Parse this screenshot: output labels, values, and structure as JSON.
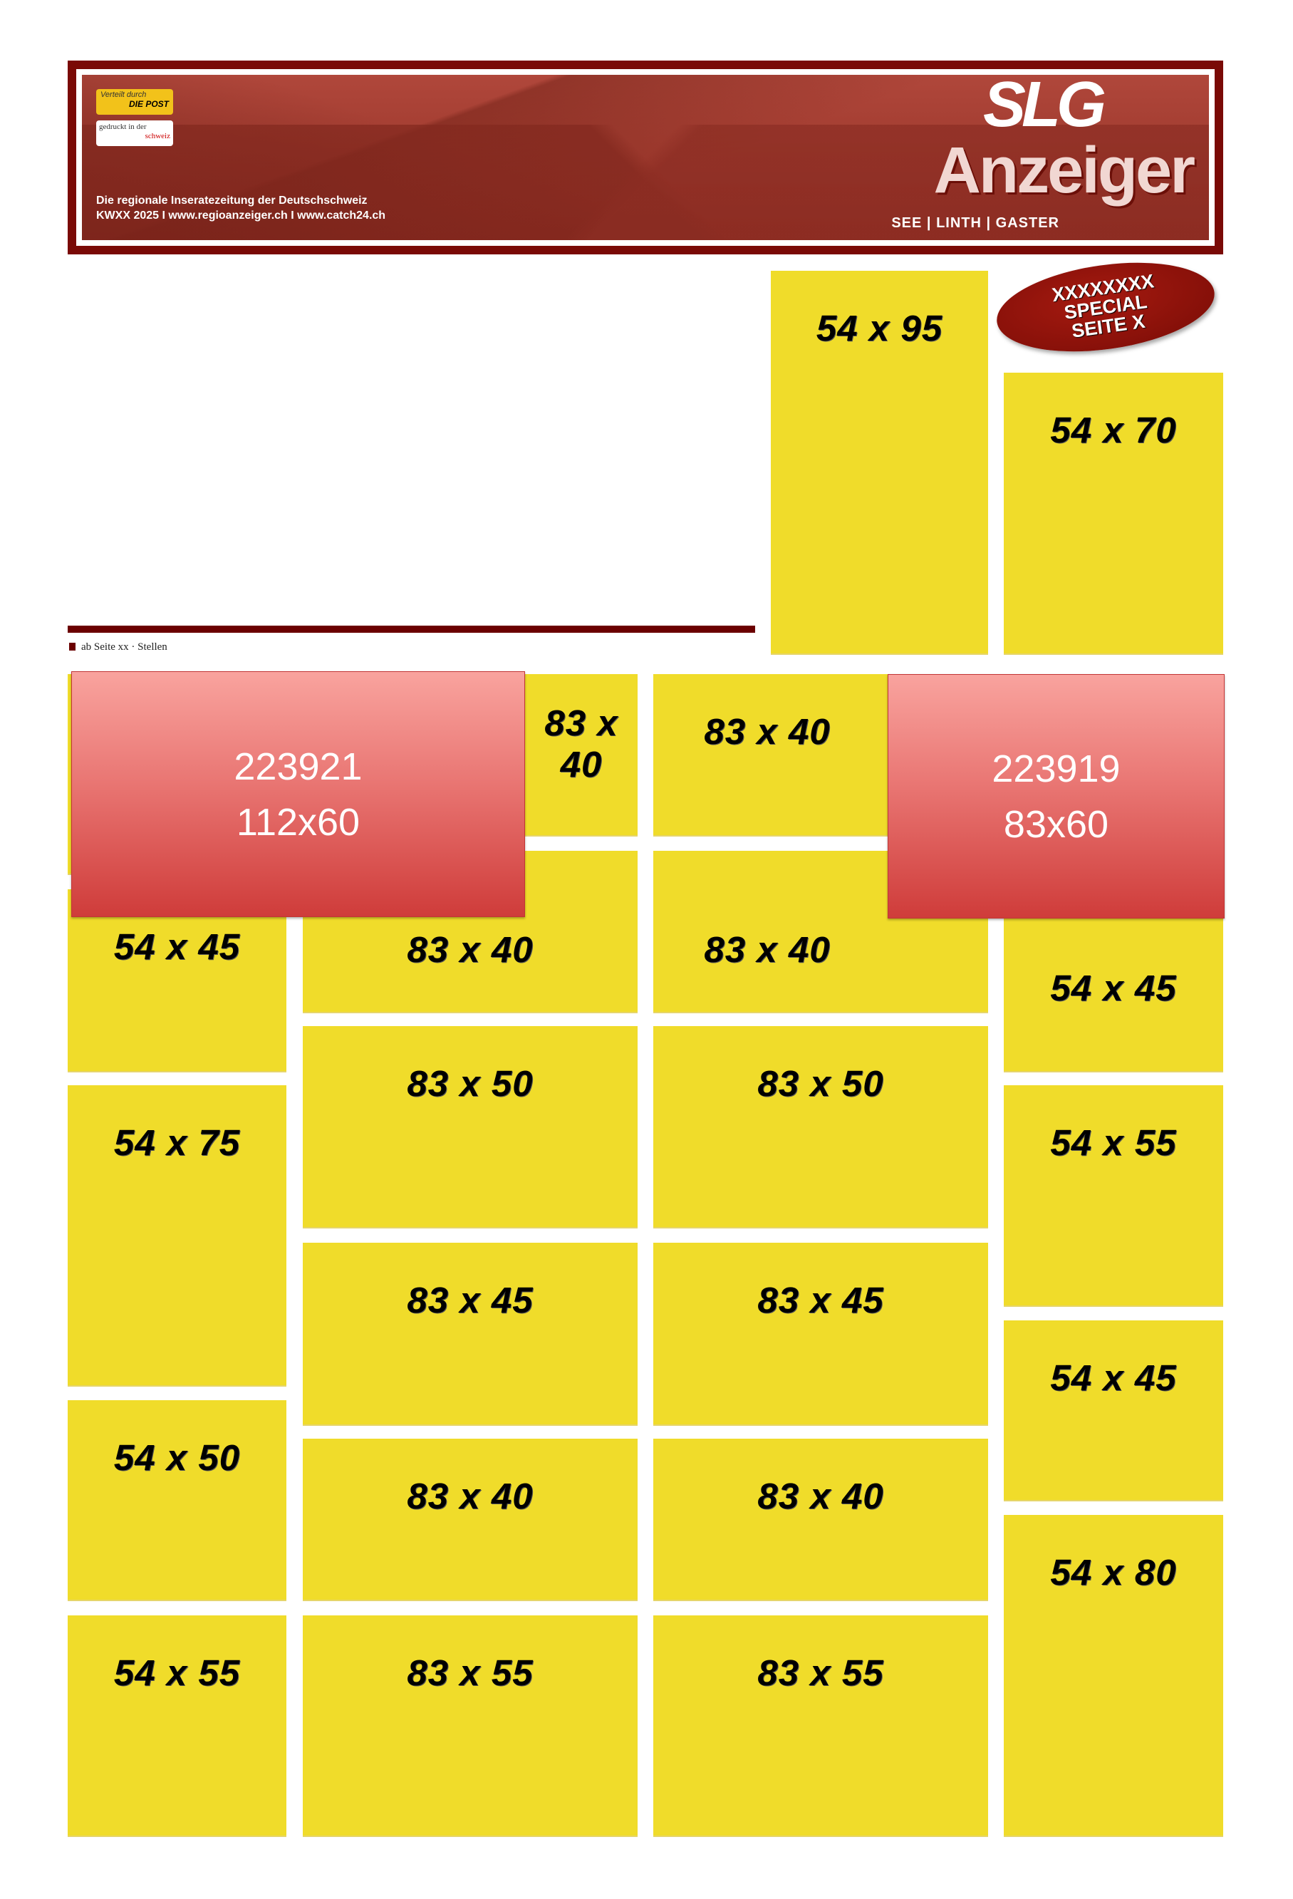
{
  "header": {
    "post_line1": "Verteilt durch",
    "post_line2": "DIE POST",
    "printed_line1": "gedruckt in der",
    "printed_line2": "schweiz",
    "tagline1": "Die regionale Inseratezeitung der Deutschschweiz",
    "tagline2": "KWXX 2025 I www.regioanzeiger.ch I www.catch24.ch",
    "logo_top": "SLG",
    "logo_main": "Anzeiger",
    "logo_sub": "SEE  |  LINTH  |  GASTER"
  },
  "badge": {
    "line1": "XXXXXXXX",
    "line2": "SPECIAL",
    "line3": "SEITE X"
  },
  "section_label": "ab Seite xx · Stellen",
  "colors": {
    "ad_slot": "#f0dc2a",
    "booked": "#e06a68",
    "brand": "#7a0a06"
  },
  "ads": {
    "top_col3": "54 x 95",
    "top_col4": "54 x 70",
    "col1": [
      "",
      "54 x 45",
      "54 x 75",
      "54 x 50",
      "54 x 55"
    ],
    "col2": [
      "83 x 40",
      "83 x 40",
      "83 x 50",
      "83 x 45",
      "83 x 40",
      "83 x 55"
    ],
    "col3": [
      "83 x 40",
      "83 x 40",
      "83 x 50",
      "83 x 45",
      "83 x 40",
      "83 x 55"
    ],
    "col4": [
      "",
      "54 x 45",
      "54 x 55",
      "54 x 45",
      "54 x 80"
    ]
  },
  "booked": [
    {
      "id": "223921",
      "size": "112x60"
    },
    {
      "id": "223919",
      "size": "83x60"
    }
  ]
}
